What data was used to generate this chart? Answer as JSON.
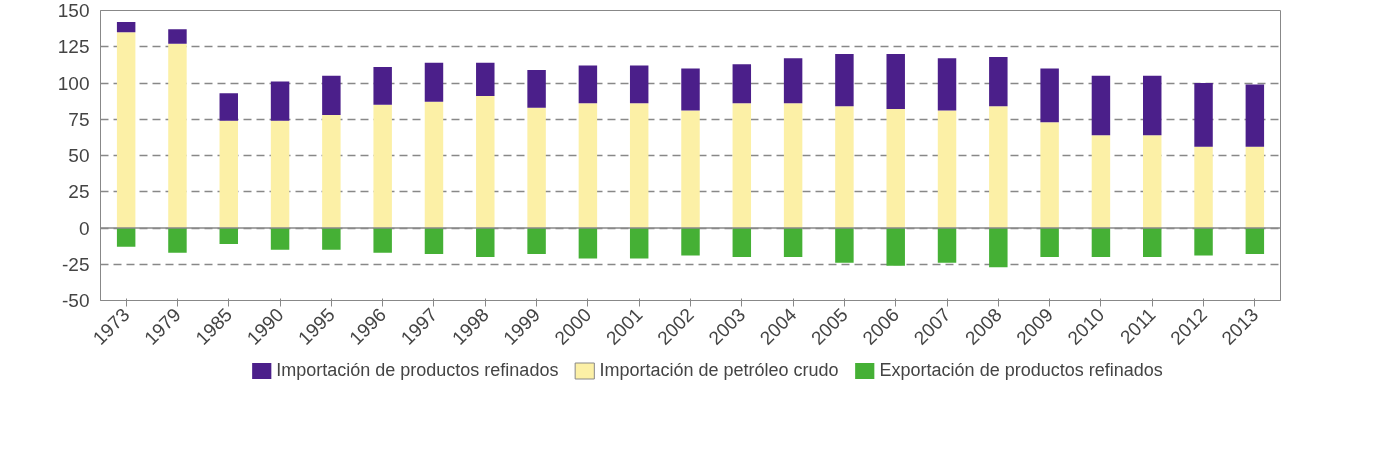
{
  "chart_data": {
    "type": "bar",
    "stacked": true,
    "categories": [
      "1973",
      "1979",
      "1985",
      "1990",
      "1995",
      "1996",
      "1997",
      "1998",
      "1999",
      "2000",
      "2001",
      "2002",
      "2003",
      "2004",
      "2005",
      "2006",
      "2007",
      "2008",
      "2009",
      "2010",
      "2011",
      "2012",
      "2013"
    ],
    "series": [
      {
        "name": "Importación de petróleo crudo",
        "color": "#fcf0a6",
        "values": [
          135,
          127,
          74,
          74,
          78,
          85,
          87,
          91,
          83,
          86,
          86,
          81,
          86,
          86,
          84,
          82,
          81,
          84,
          73,
          64,
          64,
          56,
          56
        ]
      },
      {
        "name": "Importación de productos refinados",
        "color": "#4b1f8a",
        "values": [
          7,
          10,
          19,
          27,
          27,
          26,
          27,
          23,
          26,
          26,
          26,
          29,
          27,
          31,
          36,
          38,
          36,
          34,
          37,
          41,
          41,
          44,
          43
        ]
      },
      {
        "name": "Exportación de productos refinados",
        "color": "#45b035",
        "values": [
          -13,
          -17,
          -11,
          -15,
          -15,
          -17,
          -18,
          -20,
          -18,
          -21,
          -21,
          -19,
          -20,
          -20,
          -24,
          -26,
          -24,
          -27,
          -20,
          -20,
          -20,
          -19,
          -18
        ]
      }
    ],
    "ylim": [
      -50,
      150
    ],
    "yticks": [
      -50,
      -25,
      0,
      25,
      50,
      75,
      100,
      125,
      150
    ],
    "grid": "y",
    "legend": "bottom"
  }
}
